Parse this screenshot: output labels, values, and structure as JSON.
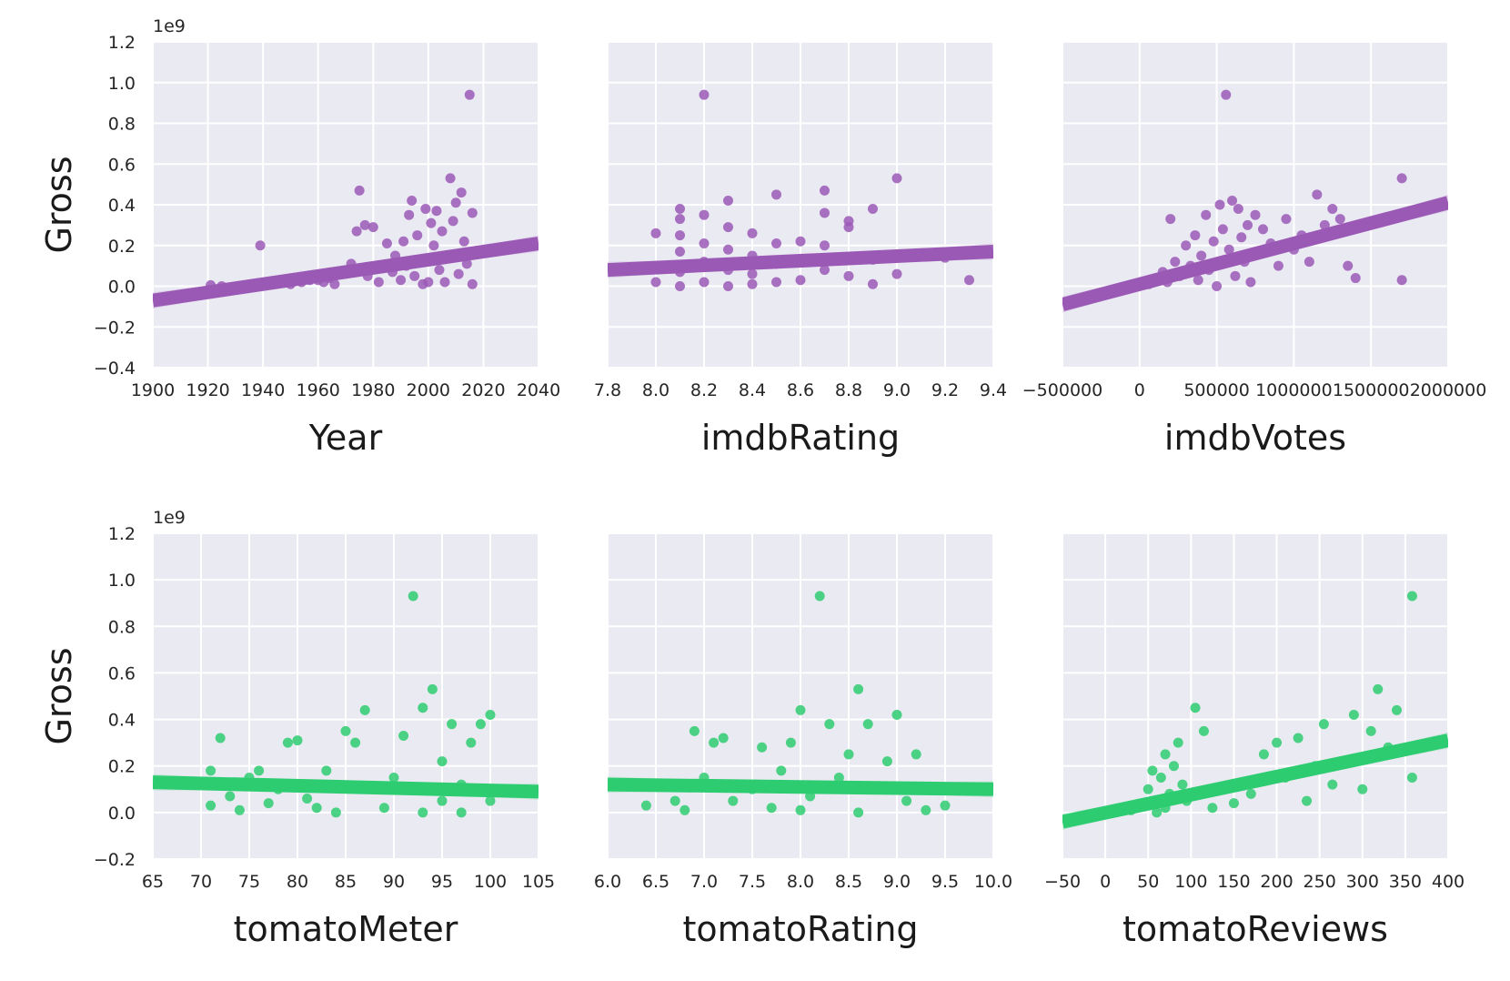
{
  "figure": {
    "background": "#ffffff",
    "panel_bg": "#eaeaf2",
    "grid_color": "#ffffff",
    "colors": {
      "top_row": "#9b59b6",
      "bottom_row": "#2ecc71"
    }
  },
  "chart_data": [
    {
      "type": "scatter",
      "xlabel": "Year",
      "ylabel": "Gross",
      "y_offset_label": "1e9",
      "xlim": [
        1900,
        2040
      ],
      "ylim": [
        -0.4,
        1.2
      ],
      "grid": true,
      "xticks": [
        1900,
        1920,
        1940,
        1960,
        1980,
        2000,
        2020,
        2040
      ],
      "xticklabels": [
        "1900",
        "1920",
        "1940",
        "1960",
        "1980",
        "2000",
        "2020",
        "2040"
      ],
      "yticks": [
        -0.4,
        -0.2,
        0.0,
        0.2,
        0.4,
        0.6,
        0.8,
        1.0,
        1.2
      ],
      "yticklabels": [
        "−0.4",
        "−0.2",
        "0.0",
        "0.2",
        "0.4",
        "0.6",
        "0.8",
        "1.0",
        "1.2"
      ],
      "color": "#9b59b6",
      "fit_line": [
        [
          1900,
          -0.07
        ],
        [
          2040,
          0.21
        ]
      ],
      "ci_band": true,
      "points": [
        [
          1921,
          0.005
        ],
        [
          1925,
          0.0
        ],
        [
          1939,
          0.2
        ],
        [
          1950,
          0.01
        ],
        [
          1954,
          0.02
        ],
        [
          1957,
          0.03
        ],
        [
          1959,
          0.05
        ],
        [
          1960,
          0.03
        ],
        [
          1962,
          0.02
        ],
        [
          1964,
          0.04
        ],
        [
          1966,
          0.01
        ],
        [
          1972,
          0.11
        ],
        [
          1974,
          0.27
        ],
        [
          1975,
          0.47
        ],
        [
          1977,
          0.3
        ],
        [
          1978,
          0.05
        ],
        [
          1980,
          0.29
        ],
        [
          1982,
          0.02
        ],
        [
          1983,
          0.1
        ],
        [
          1985,
          0.21
        ],
        [
          1987,
          0.07
        ],
        [
          1988,
          0.15
        ],
        [
          1990,
          0.03
        ],
        [
          1991,
          0.22
        ],
        [
          1992,
          0.1
        ],
        [
          1993,
          0.35
        ],
        [
          1994,
          0.42
        ],
        [
          1995,
          0.05
        ],
        [
          1996,
          0.25
        ],
        [
          1997,
          0.13
        ],
        [
          1998,
          0.01
        ],
        [
          1999,
          0.38
        ],
        [
          2000,
          0.02
        ],
        [
          2001,
          0.31
        ],
        [
          2002,
          0.2
        ],
        [
          2003,
          0.37
        ],
        [
          2004,
          0.08
        ],
        [
          2005,
          0.27
        ],
        [
          2006,
          0.02
        ],
        [
          2007,
          0.15
        ],
        [
          2008,
          0.53
        ],
        [
          2009,
          0.32
        ],
        [
          2010,
          0.41
        ],
        [
          2011,
          0.06
        ],
        [
          2012,
          0.46
        ],
        [
          2013,
          0.22
        ],
        [
          2014,
          0.11
        ],
        [
          2015,
          0.94
        ],
        [
          2016,
          0.36
        ],
        [
          2016,
          0.01
        ]
      ]
    },
    {
      "type": "scatter",
      "xlabel": "imdbRating",
      "ylabel": "",
      "y_offset_label": "",
      "xlim": [
        7.8,
        9.4
      ],
      "ylim": [
        -0.4,
        1.2
      ],
      "grid": true,
      "xticks": [
        7.8,
        8.0,
        8.2,
        8.4,
        8.6,
        8.8,
        9.0,
        9.2,
        9.4
      ],
      "xticklabels": [
        "7.8",
        "8.0",
        "8.2",
        "8.4",
        "8.6",
        "8.8",
        "9.0",
        "9.2",
        "9.4"
      ],
      "yticks": [
        -0.4,
        -0.2,
        0.0,
        0.2,
        0.4,
        0.6,
        0.8,
        1.0,
        1.2
      ],
      "yticklabels": [],
      "color": "#9b59b6",
      "fit_line": [
        [
          7.8,
          0.08
        ],
        [
          9.4,
          0.17
        ]
      ],
      "ci_band": true,
      "points": [
        [
          8.0,
          0.26
        ],
        [
          8.0,
          0.02
        ],
        [
          8.0,
          0.1
        ],
        [
          8.1,
          0.38
        ],
        [
          8.1,
          0.33
        ],
        [
          8.1,
          0.25
        ],
        [
          8.1,
          0.17
        ],
        [
          8.1,
          0.07
        ],
        [
          8.1,
          0.0
        ],
        [
          8.2,
          0.94
        ],
        [
          8.2,
          0.35
        ],
        [
          8.2,
          0.21
        ],
        [
          8.2,
          0.12
        ],
        [
          8.2,
          0.02
        ],
        [
          8.3,
          0.42
        ],
        [
          8.3,
          0.29
        ],
        [
          8.3,
          0.18
        ],
        [
          8.3,
          0.08
        ],
        [
          8.3,
          0.0
        ],
        [
          8.4,
          0.26
        ],
        [
          8.4,
          0.15
        ],
        [
          8.4,
          0.06
        ],
        [
          8.4,
          0.01
        ],
        [
          8.5,
          0.45
        ],
        [
          8.5,
          0.21
        ],
        [
          8.5,
          0.11
        ],
        [
          8.5,
          0.02
        ],
        [
          8.6,
          0.22
        ],
        [
          8.6,
          0.13
        ],
        [
          8.6,
          0.03
        ],
        [
          8.7,
          0.47
        ],
        [
          8.7,
          0.36
        ],
        [
          8.7,
          0.2
        ],
        [
          8.7,
          0.08
        ],
        [
          8.8,
          0.32
        ],
        [
          8.8,
          0.29
        ],
        [
          8.8,
          0.05
        ],
        [
          8.9,
          0.38
        ],
        [
          8.9,
          0.13
        ],
        [
          8.9,
          0.01
        ],
        [
          9.0,
          0.53
        ],
        [
          9.0,
          0.06
        ],
        [
          9.2,
          0.14
        ],
        [
          9.3,
          0.03
        ]
      ]
    },
    {
      "type": "scatter",
      "xlabel": "imdbVotes",
      "ylabel": "",
      "y_offset_label": "",
      "xlim": [
        -500000,
        2000000
      ],
      "ylim": [
        -0.4,
        1.2
      ],
      "grid": true,
      "xticks": [
        -500000,
        0,
        500000,
        1000000,
        1500000,
        2000000
      ],
      "xticklabels": [
        "−500000",
        "0",
        "500000",
        "1000000",
        "1500000",
        "2000000"
      ],
      "yticks": [
        -0.4,
        -0.2,
        0.0,
        0.2,
        0.4,
        0.6,
        0.8,
        1.0,
        1.2
      ],
      "yticklabels": [],
      "color": "#9b59b6",
      "fit_line": [
        [
          -500000,
          -0.09
        ],
        [
          2000000,
          0.41
        ]
      ],
      "ci_band": true,
      "points": [
        [
          60000,
          0.01
        ],
        [
          100000,
          0.03
        ],
        [
          150000,
          0.07
        ],
        [
          180000,
          0.02
        ],
        [
          200000,
          0.33
        ],
        [
          230000,
          0.12
        ],
        [
          260000,
          0.05
        ],
        [
          300000,
          0.2
        ],
        [
          330000,
          0.1
        ],
        [
          360000,
          0.25
        ],
        [
          380000,
          0.03
        ],
        [
          400000,
          0.15
        ],
        [
          430000,
          0.35
        ],
        [
          450000,
          0.08
        ],
        [
          480000,
          0.22
        ],
        [
          500000,
          0.0
        ],
        [
          520000,
          0.4
        ],
        [
          540000,
          0.28
        ],
        [
          560000,
          0.94
        ],
        [
          580000,
          0.18
        ],
        [
          600000,
          0.42
        ],
        [
          620000,
          0.05
        ],
        [
          640000,
          0.38
        ],
        [
          660000,
          0.24
        ],
        [
          680000,
          0.12
        ],
        [
          700000,
          0.3
        ],
        [
          720000,
          0.02
        ],
        [
          750000,
          0.35
        ],
        [
          780000,
          0.16
        ],
        [
          800000,
          0.28
        ],
        [
          850000,
          0.21
        ],
        [
          900000,
          0.1
        ],
        [
          950000,
          0.33
        ],
        [
          1000000,
          0.18
        ],
        [
          1050000,
          0.25
        ],
        [
          1100000,
          0.12
        ],
        [
          1150000,
          0.45
        ],
        [
          1200000,
          0.3
        ],
        [
          1250000,
          0.38
        ],
        [
          1300000,
          0.33
        ],
        [
          1350000,
          0.1
        ],
        [
          1400000,
          0.04
        ],
        [
          1700000,
          0.53
        ],
        [
          1700000,
          0.03
        ]
      ]
    },
    {
      "type": "scatter",
      "xlabel": "tomatoMeter",
      "ylabel": "Gross",
      "y_offset_label": "1e9",
      "xlim": [
        65,
        105
      ],
      "ylim": [
        -0.2,
        1.2
      ],
      "grid": true,
      "xticks": [
        65,
        70,
        75,
        80,
        85,
        90,
        95,
        100,
        105
      ],
      "xticklabels": [
        "65",
        "70",
        "75",
        "80",
        "85",
        "90",
        "95",
        "100",
        "105"
      ],
      "yticks": [
        -0.2,
        0.0,
        0.2,
        0.4,
        0.6,
        0.8,
        1.0,
        1.2
      ],
      "yticklabels": [
        "−0.2",
        "0.0",
        "0.2",
        "0.4",
        "0.6",
        "0.8",
        "1.0",
        "1.2"
      ],
      "color": "#2ecc71",
      "fit_line": [
        [
          65,
          0.13
        ],
        [
          105,
          0.09
        ]
      ],
      "ci_band": true,
      "points": [
        [
          71,
          0.18
        ],
        [
          71,
          0.03
        ],
        [
          72,
          0.32
        ],
        [
          73,
          0.07
        ],
        [
          74,
          0.01
        ],
        [
          75,
          0.15
        ],
        [
          76,
          0.18
        ],
        [
          77,
          0.04
        ],
        [
          78,
          0.1
        ],
        [
          79,
          0.3
        ],
        [
          80,
          0.31
        ],
        [
          81,
          0.06
        ],
        [
          82,
          0.02
        ],
        [
          83,
          0.18
        ],
        [
          84,
          0.0
        ],
        [
          85,
          0.35
        ],
        [
          86,
          0.3
        ],
        [
          87,
          0.44
        ],
        [
          88,
          0.1
        ],
        [
          89,
          0.02
        ],
        [
          90,
          0.15
        ],
        [
          91,
          0.33
        ],
        [
          92,
          0.93
        ],
        [
          93,
          0.45
        ],
        [
          94,
          0.53
        ],
        [
          95,
          0.22
        ],
        [
          96,
          0.38
        ],
        [
          97,
          0.12
        ],
        [
          98,
          0.3
        ],
        [
          99,
          0.38
        ],
        [
          100,
          0.42
        ],
        [
          100,
          0.05
        ],
        [
          93,
          0.0
        ],
        [
          95,
          0.05
        ],
        [
          97,
          0.0
        ]
      ]
    },
    {
      "type": "scatter",
      "xlabel": "tomatoRating",
      "ylabel": "",
      "y_offset_label": "",
      "xlim": [
        6.0,
        10.0
      ],
      "ylim": [
        -0.2,
        1.2
      ],
      "grid": true,
      "xticks": [
        6.0,
        6.5,
        7.0,
        7.5,
        8.0,
        8.5,
        9.0,
        9.5,
        10.0
      ],
      "xticklabels": [
        "6.0",
        "6.5",
        "7.0",
        "7.5",
        "8.0",
        "8.5",
        "9.0",
        "9.5",
        "10.0"
      ],
      "yticks": [
        -0.2,
        0.0,
        0.2,
        0.4,
        0.6,
        0.8,
        1.0,
        1.2
      ],
      "yticklabels": [],
      "color": "#2ecc71",
      "fit_line": [
        [
          6.0,
          0.12
        ],
        [
          10.0,
          0.1
        ]
      ],
      "ci_band": true,
      "points": [
        [
          6.4,
          0.03
        ],
        [
          6.7,
          0.05
        ],
        [
          6.8,
          0.01
        ],
        [
          6.9,
          0.35
        ],
        [
          7.0,
          0.15
        ],
        [
          7.1,
          0.3
        ],
        [
          7.2,
          0.32
        ],
        [
          7.3,
          0.05
        ],
        [
          7.5,
          0.1
        ],
        [
          7.6,
          0.28
        ],
        [
          7.7,
          0.02
        ],
        [
          7.8,
          0.18
        ],
        [
          7.9,
          0.3
        ],
        [
          8.0,
          0.44
        ],
        [
          8.1,
          0.07
        ],
        [
          8.2,
          0.93
        ],
        [
          8.3,
          0.38
        ],
        [
          8.4,
          0.15
        ],
        [
          8.5,
          0.25
        ],
        [
          8.6,
          0.53
        ],
        [
          8.7,
          0.38
        ],
        [
          8.8,
          0.1
        ],
        [
          8.9,
          0.22
        ],
        [
          9.0,
          0.42
        ],
        [
          9.1,
          0.05
        ],
        [
          9.2,
          0.25
        ],
        [
          9.3,
          0.01
        ],
        [
          9.5,
          0.03
        ],
        [
          8.6,
          0.0
        ],
        [
          8.0,
          0.01
        ]
      ]
    },
    {
      "type": "scatter",
      "xlabel": "tomatoReviews",
      "ylabel": "",
      "y_offset_label": "",
      "xlim": [
        -50,
        400
      ],
      "ylim": [
        -0.2,
        1.2
      ],
      "grid": true,
      "xticks": [
        -50,
        0,
        50,
        100,
        150,
        200,
        250,
        300,
        350,
        400
      ],
      "xticklabels": [
        "−50",
        "0",
        "50",
        "100",
        "150",
        "200",
        "250",
        "300",
        "350",
        "400"
      ],
      "yticks": [
        -0.2,
        0.0,
        0.2,
        0.4,
        0.6,
        0.8,
        1.0,
        1.2
      ],
      "yticklabels": [],
      "color": "#2ecc71",
      "fit_line": [
        [
          -50,
          -0.04
        ],
        [
          400,
          0.31
        ]
      ],
      "ci_band": true,
      "points": [
        [
          30,
          0.01
        ],
        [
          40,
          0.03
        ],
        [
          50,
          0.1
        ],
        [
          55,
          0.18
        ],
        [
          60,
          0.05
        ],
        [
          65,
          0.15
        ],
        [
          70,
          0.25
        ],
        [
          75,
          0.08
        ],
        [
          80,
          0.2
        ],
        [
          85,
          0.3
        ],
        [
          90,
          0.12
        ],
        [
          95,
          0.05
        ],
        [
          105,
          0.45
        ],
        [
          115,
          0.35
        ],
        [
          125,
          0.02
        ],
        [
          135,
          0.1
        ],
        [
          150,
          0.04
        ],
        [
          170,
          0.08
        ],
        [
          185,
          0.25
        ],
        [
          200,
          0.3
        ],
        [
          210,
          0.15
        ],
        [
          225,
          0.32
        ],
        [
          235,
          0.05
        ],
        [
          245,
          0.2
        ],
        [
          255,
          0.38
        ],
        [
          265,
          0.12
        ],
        [
          275,
          0.22
        ],
        [
          290,
          0.42
        ],
        [
          300,
          0.1
        ],
        [
          310,
          0.35
        ],
        [
          318,
          0.53
        ],
        [
          330,
          0.28
        ],
        [
          340,
          0.44
        ],
        [
          358,
          0.93
        ],
        [
          358,
          0.15
        ],
        [
          60,
          0.0
        ],
        [
          70,
          0.02
        ],
        [
          80,
          0.06
        ]
      ]
    }
  ]
}
